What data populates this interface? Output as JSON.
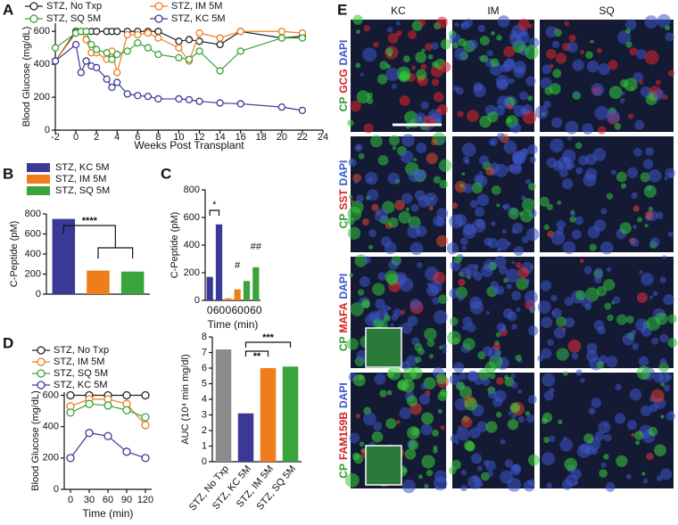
{
  "chart_data": [
    {
      "type": "line",
      "panel": "A",
      "xlabel": "Weeks Post Transplant",
      "ylabel": "Blood Glucose (mg/dL)",
      "x": [
        -2,
        0,
        0.5,
        1,
        1.5,
        2,
        3,
        3.5,
        4,
        5,
        6,
        7,
        8,
        10,
        11,
        12,
        14,
        16,
        20,
        22
      ],
      "series": [
        {
          "name": "STZ, No Txp",
          "color": "#222222",
          "values": [
            420,
            600,
            600,
            600,
            600,
            600,
            600,
            600,
            600,
            600,
            600,
            600,
            600,
            540,
            550,
            540,
            520,
            600,
            560,
            570
          ]
        },
        {
          "name": "STZ, IM 5M",
          "color": "#ee7d1a",
          "values": [
            420,
            590,
            600,
            550,
            470,
            470,
            430,
            480,
            350,
            580,
            580,
            590,
            560,
            500,
            420,
            590,
            560,
            600,
            600,
            590
          ]
        },
        {
          "name": "STZ, SQ 5M",
          "color": "#3aa33a",
          "values": [
            500,
            590,
            600,
            600,
            520,
            490,
            470,
            430,
            460,
            480,
            530,
            500,
            460,
            440,
            430,
            480,
            360,
            480,
            560,
            560
          ]
        },
        {
          "name": "STZ, KC 5M",
          "color": "#3a3a96",
          "values": [
            420,
            520,
            350,
            420,
            390,
            380,
            310,
            260,
            290,
            220,
            210,
            205,
            190,
            190,
            185,
            175,
            165,
            160,
            140,
            120
          ]
        }
      ],
      "xlim": [
        -2,
        24
      ],
      "xticks": [
        -2,
        0,
        2,
        4,
        6,
        8,
        10,
        12,
        14,
        16,
        18,
        20,
        22,
        24
      ],
      "ylim": [
        0,
        650
      ],
      "yticks": [
        0,
        200,
        400,
        600
      ]
    },
    {
      "type": "bar",
      "panel": "B",
      "ylabel": "C-Peptide (pM)",
      "series": [
        {
          "name": "STZ, KC 5M",
          "color": "#3a3a96",
          "values": [
            750
          ]
        },
        {
          "name": "STZ, IM 5M",
          "color": "#ee7d1a",
          "values": [
            235
          ]
        },
        {
          "name": "STZ, SQ 5M",
          "color": "#3aa33a",
          "values": [
            225
          ]
        }
      ],
      "ylim": [
        0,
        800
      ],
      "yticks": [
        0,
        200,
        400,
        600,
        800
      ],
      "annotations": [
        "****"
      ]
    },
    {
      "type": "bar",
      "panel": "C",
      "ylabel": "C-Peptide (pM)",
      "xlabel": "Time  (min)",
      "categories": [
        "0",
        "60",
        "0",
        "60",
        "0",
        "60"
      ],
      "values": [
        170,
        550,
        15,
        80,
        140,
        240
      ],
      "colors": [
        "#3a3a96",
        "#3a3a96",
        "#ee7d1a",
        "#ee7d1a",
        "#3aa33a",
        "#3aa33a"
      ],
      "ylim": [
        0,
        800
      ],
      "yticks": [
        0,
        200,
        400,
        600,
        800
      ],
      "annotations": [
        "*",
        "#",
        "##"
      ]
    },
    {
      "type": "line",
      "panel": "D",
      "xlabel": "Time (min)",
      "ylabel": "Blood Glucose (mg/dL)",
      "x": [
        0,
        30,
        60,
        90,
        120
      ],
      "series": [
        {
          "name": "STZ, No Txp",
          "color": "#222222",
          "values": [
            600,
            600,
            600,
            600,
            600
          ]
        },
        {
          "name": "STZ, IM 5M",
          "color": "#ee7d1a",
          "values": [
            530,
            575,
            575,
            545,
            410
          ]
        },
        {
          "name": "STZ, SQ 5M",
          "color": "#3aa33a",
          "values": [
            490,
            545,
            535,
            505,
            460
          ]
        },
        {
          "name": "STZ, KC 5M",
          "color": "#3a3a96",
          "values": [
            200,
            360,
            340,
            240,
            200
          ]
        }
      ],
      "xlim": [
        -10,
        130
      ],
      "xticks": [
        0,
        30,
        60,
        90,
        120
      ],
      "ylim": [
        0,
        620
      ],
      "yticks": [
        0,
        200,
        400,
        600
      ]
    },
    {
      "type": "bar",
      "ylabel": "AUC (10⁴ min mg/dl)",
      "categories": [
        "STZ, No Txp",
        "STZ, KC 5M",
        "STZ, IM 5M",
        "STZ, SQ 5M"
      ],
      "values": [
        7.2,
        3.1,
        6.0,
        6.1
      ],
      "colors": [
        "#8c8c8c",
        "#3a3a96",
        "#ee7d1a",
        "#3aa33a"
      ],
      "ylim": [
        0,
        8
      ],
      "yticks": [
        0,
        1,
        2,
        3,
        4,
        5,
        6,
        7,
        8
      ],
      "annotations": [
        "**",
        "***"
      ]
    }
  ],
  "panel_e": {
    "panel": "E",
    "columns": [
      "KC",
      "IM",
      "SQ"
    ],
    "stain_colors": [
      "#2e9a2e",
      "#d42020",
      "#3a55c8"
    ],
    "rows": [
      [
        "CP",
        "GCG",
        "DAPI"
      ],
      [
        "CP",
        "SST",
        "DAPI"
      ],
      [
        "CP",
        "MAFA",
        "DAPI"
      ],
      [
        "CP",
        "FAM159B",
        "DAPI"
      ]
    ]
  }
}
